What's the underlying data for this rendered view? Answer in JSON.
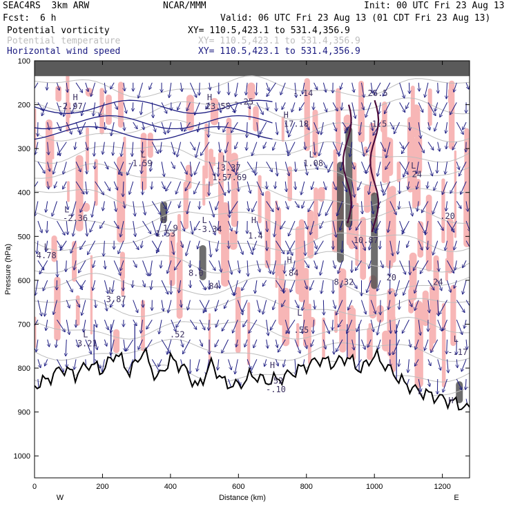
{
  "header": {
    "model": "SEAC4RS  3km ARW",
    "center": "NCAR/MMM",
    "init": "Init: 00 UTC Fri 23 Aug 13",
    "fcst_label": "Fcst:",
    "fcst_value": "6 h",
    "valid": "Valid: 06 UTC Fri 23 Aug 13 (01 CDT Fri 23 Aug 13)"
  },
  "fields": [
    {
      "name": "Potential vorticity",
      "xy": "XY= 110.5,423.1 to 531.4,356.9",
      "color": "#000000"
    },
    {
      "name": "Potential temperature",
      "xy": "XY= 110.5,423.1 to 531.4,356.9",
      "color": "#bdbdbd"
    },
    {
      "name": "Horizontal wind speed",
      "xy": "XY= 110.5,423.1 to 531.4,356.9",
      "color": "#1a1a80"
    }
  ],
  "colors": {
    "pv_shade_pink": "#f7b6b6",
    "pv_shade_dark": "#4a4a4a",
    "pv_contour": "#4a0a3a",
    "theta": "#bdbdbd",
    "wind": "#1a1a80",
    "terrain": "#000000",
    "label_text": "#3a2f5f"
  },
  "chart_data": {
    "type": "cross-section",
    "xlabel": "Distance (km)",
    "ylabel": "Pressure (hPa)",
    "xlim": [
      0,
      1280
    ],
    "ylim": [
      1050,
      100
    ],
    "x_ticks": [
      0,
      200,
      400,
      600,
      800,
      1000,
      1200
    ],
    "y_ticks": [
      100,
      200,
      300,
      400,
      500,
      600,
      700,
      800,
      900,
      1000
    ],
    "left_end": "W",
    "right_end": "E",
    "terrain": {
      "x": [
        0,
        40,
        80,
        120,
        160,
        200,
        240,
        280,
        320,
        360,
        400,
        440,
        480,
        520,
        560,
        600,
        640,
        680,
        720,
        760,
        800,
        840,
        880,
        920,
        960,
        1000,
        1040,
        1080,
        1120,
        1160,
        1200,
        1240,
        1280
      ],
      "p": [
        840,
        825,
        800,
        815,
        790,
        805,
        765,
        810,
        760,
        825,
        780,
        800,
        845,
        790,
        835,
        840,
        815,
        830,
        825,
        810,
        795,
        780,
        790,
        775,
        805,
        770,
        800,
        830,
        850,
        860,
        870,
        880,
        895
      ]
    },
    "labels": [
      {
        "text": "H",
        "x": 120,
        "p": 190
      },
      {
        "text": "-2.97",
        "x": 105,
        "p": 210
      },
      {
        "text": "H",
        "x": 515,
        "p": 190
      },
      {
        "text": "23.55",
        "x": 540,
        "p": 210
      },
      {
        "text": "H",
        "x": 740,
        "p": 230
      },
      {
        "text": "17.18",
        "x": 770,
        "p": 250
      },
      {
        "text": "L",
        "x": 320,
        "p": 320
      },
      {
        "text": "-1.59",
        "x": 310,
        "p": 340
      },
      {
        "text": "L",
        "x": 560,
        "p": 330
      },
      {
        "text": "-3.37",
        "x": 570,
        "p": 350
      },
      {
        "text": "1.5",
        "x": 545,
        "p": 372
      },
      {
        "text": "7.69",
        "x": 595,
        "p": 372
      },
      {
        "text": "L",
        "x": 815,
        "p": 320
      },
      {
        "text": "1.08",
        "x": 820,
        "p": 340
      },
      {
        "text": "L",
        "x": 1115,
        "p": 345
      },
      {
        "text": "24",
        "x": 1125,
        "p": 365
      },
      {
        "text": "L",
        "x": 95,
        "p": 445
      },
      {
        "text": "-2.36",
        "x": 120,
        "p": 465
      },
      {
        "text": "H",
        "x": 380,
        "p": 470
      },
      {
        "text": "1.9",
        "x": 400,
        "p": 488
      },
      {
        "text": "1.53",
        "x": 385,
        "p": 500
      },
      {
        "text": "L",
        "x": 500,
        "p": 470
      },
      {
        "text": "-3.34",
        "x": 515,
        "p": 490
      },
      {
        "text": "H",
        "x": 645,
        "p": 470
      },
      {
        "text": "1.4",
        "x": 650,
        "p": 505
      },
      {
        "text": "10.87",
        "x": 975,
        "p": 515
      },
      {
        "text": "L",
        "x": 35,
        "p": 530
      },
      {
        "text": "4.78",
        "x": 35,
        "p": 550
      },
      {
        "text": "H",
        "x": 750,
        "p": 560
      },
      {
        "text": ".84",
        "x": 755,
        "p": 590
      },
      {
        "text": "8.0",
        "x": 475,
        "p": 590
      },
      {
        "text": ".84",
        "x": 520,
        "p": 620
      },
      {
        "text": "8.32",
        "x": 910,
        "p": 610
      },
      {
        "text": "L",
        "x": 225,
        "p": 630
      },
      {
        "text": "3.87",
        "x": 240,
        "p": 650
      },
      {
        "text": "L",
        "x": 780,
        "p": 680
      },
      {
        "text": ".55",
        "x": 785,
        "p": 720
      },
      {
        "text": ".52",
        "x": 420,
        "p": 730
      },
      {
        "text": "L",
        "x": 150,
        "p": 730
      },
      {
        "text": "3.21",
        "x": 155,
        "p": 750
      },
      {
        "text": "L",
        "x": 1240,
        "p": 740
      },
      {
        "text": "-.17",
        "x": 1245,
        "p": 770
      },
      {
        "text": "H",
        "x": 700,
        "p": 800
      },
      {
        "text": ".52",
        "x": 710,
        "p": 835
      },
      {
        "text": "-.10",
        "x": 710,
        "p": 855
      },
      {
        "text": "-.14",
        "x": 790,
        "p": 180
      },
      {
        "text": "-.25",
        "x": 615,
        "p": 200
      },
      {
        "text": "26.5",
        "x": 1010,
        "p": 180
      },
      {
        "text": "1.5",
        "x": 1015,
        "p": 250
      },
      {
        "text": ".20",
        "x": 1215,
        "p": 460
      },
      {
        "text": ".24",
        "x": 1180,
        "p": 610
      },
      {
        "text": "20",
        "x": 1050,
        "p": 600
      },
      {
        "text": "H",
        "x": 1225,
        "p": 880
      },
      {
        "text": "L",
        "x": 1135,
        "p": 860
      }
    ]
  }
}
